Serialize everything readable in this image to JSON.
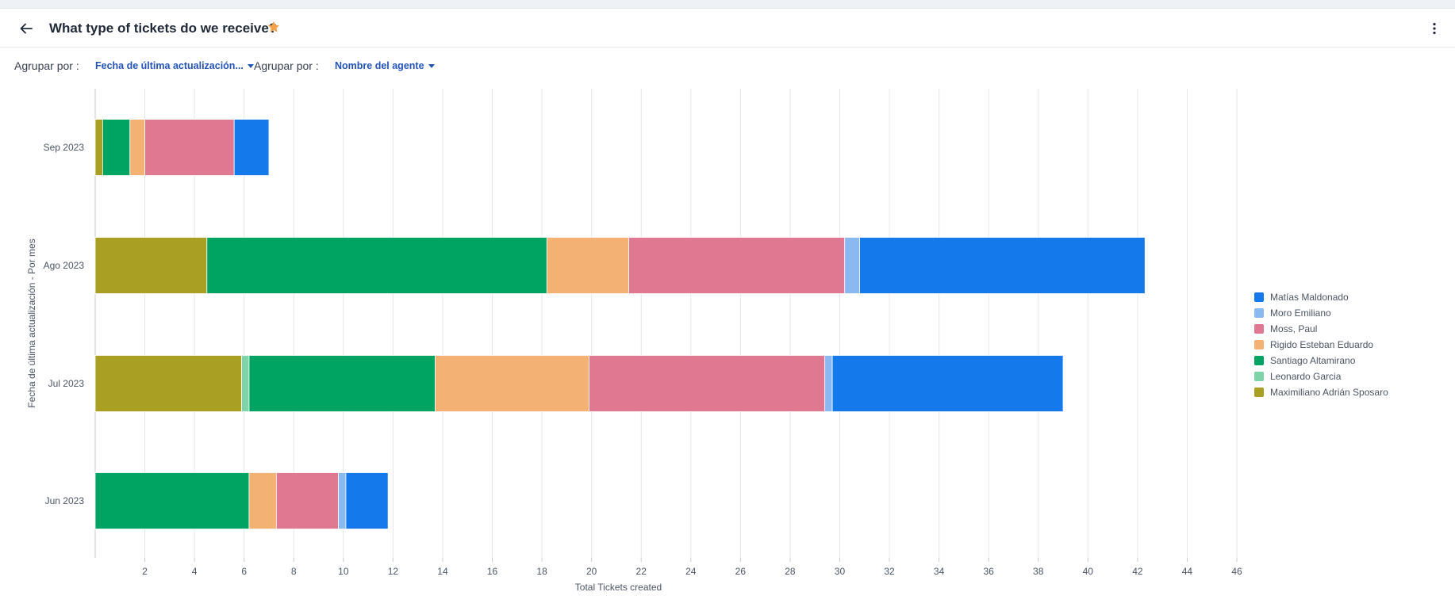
{
  "header": {
    "title": "What type of tickets do we receive?",
    "back_icon": "arrow-left-icon",
    "favorite_icon": "star-icon",
    "more_icon": "vertical-dots-icon",
    "star_color": "#f4a24b"
  },
  "toolbar": {
    "group1_label": "Agrupar por :",
    "group1_value": "Fecha de última actualización...",
    "group2_label": "Agrupar por :",
    "group2_value": "Nombre del agente"
  },
  "chart_data": {
    "type": "bar",
    "orientation": "horizontal",
    "stacked": true,
    "xlabel": "Total Tickets created",
    "ylabel": "Fecha de última actualización - Por mes",
    "xlim": [
      0,
      46
    ],
    "xticks": [
      2,
      4,
      6,
      8,
      10,
      12,
      14,
      16,
      18,
      20,
      22,
      24,
      26,
      28,
      30,
      32,
      34,
      36,
      38,
      40,
      42,
      44,
      46
    ],
    "grid": true,
    "legend_position": "right",
    "categories": [
      "Sep 2023",
      "Ago 2023",
      "Jul 2023",
      "Jun 2023"
    ],
    "series": [
      {
        "name": "Maximiliano Adrián Sposaro",
        "color": "#a99f22",
        "values": [
          0.3,
          4.5,
          5.9,
          0
        ]
      },
      {
        "name": "Leonardo Garcia",
        "color": "#7fd3a8",
        "values": [
          0,
          0,
          0.3,
          0
        ]
      },
      {
        "name": "Santiago Altamirano",
        "color": "#00a462",
        "values": [
          1.1,
          13.7,
          7.5,
          6.2
        ]
      },
      {
        "name": "Rigido Esteban Eduardo",
        "color": "#f4b174",
        "values": [
          0.6,
          3.3,
          6.2,
          1.1
        ]
      },
      {
        "name": "Moss, Paul",
        "color": "#e17891",
        "values": [
          3.6,
          8.7,
          9.5,
          2.5
        ]
      },
      {
        "name": "Moro Emiliano",
        "color": "#8ab9f2",
        "values": [
          0,
          0.6,
          0.3,
          0.3
        ]
      },
      {
        "name": "Matías Maldonado",
        "color": "#1479ea",
        "values": [
          1.4,
          11.5,
          9.3,
          1.7
        ]
      }
    ],
    "legend_order": [
      "Matías Maldonado",
      "Moro Emiliano",
      "Moss, Paul",
      "Rigido Esteban Eduardo",
      "Santiago Altamirano",
      "Leonardo Garcia",
      "Maximiliano Adrián Sposaro"
    ]
  }
}
